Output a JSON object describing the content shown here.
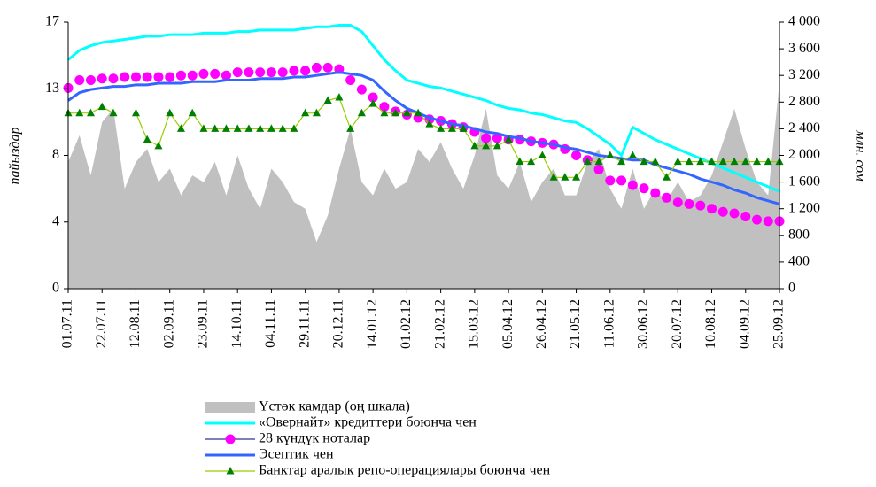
{
  "chart_data": {
    "type": "line",
    "categories": [
      "01.07.11",
      null,
      null,
      "22.07.11",
      null,
      null,
      "12.08.11",
      null,
      null,
      "02.09.11",
      null,
      null,
      "23.09.11",
      null,
      null,
      "14.10.11",
      null,
      null,
      "04.11.11",
      null,
      null,
      "29.11.11",
      null,
      null,
      "20.12.11",
      null,
      null,
      "14.01.12",
      null,
      null,
      "01.02.12",
      null,
      null,
      "21.02.12",
      null,
      null,
      "15.03.12",
      null,
      null,
      "05.04.12",
      null,
      null,
      "26.04.12",
      null,
      null,
      "21.05.12",
      null,
      null,
      "11.06.12",
      null,
      null,
      "30.06.12",
      null,
      null,
      "20.07.12",
      null,
      null,
      "10.08.12",
      null,
      null,
      "04.09.12",
      null,
      null,
      "25.09.12"
    ],
    "y_label": "пайыздар",
    "y2_label": "млн. сом",
    "ylim": [
      0,
      17
    ],
    "yticks": [
      0,
      {
        "value": 4.25,
        "label": "4"
      },
      {
        "value": 8.5,
        "label": "8"
      },
      {
        "value": 12.75,
        "label": "13"
      },
      17
    ],
    "y2lim": [
      0,
      4000
    ],
    "y2ticks": [
      0,
      400,
      800,
      {
        "value": 1200,
        "label": "1 200"
      },
      {
        "value": 1600,
        "label": "1 600"
      },
      {
        "value": 2000,
        "label": "2 000"
      },
      {
        "value": 2400,
        "label": "2 400"
      },
      {
        "value": 2800,
        "label": "2 800"
      },
      {
        "value": 3200,
        "label": "3 200"
      },
      {
        "value": 3600,
        "label": "3 600"
      },
      {
        "value": 4000,
        "label": "4 000"
      }
    ],
    "legend": "bottom",
    "series": [
      {
        "name": "Үстөк камдар (оң шкала)",
        "axis": "y2",
        "mark": "area",
        "color": "#c0c0c0",
        "values": [
          1900,
          2300,
          1700,
          2500,
          2700,
          1500,
          1900,
          2100,
          1600,
          1800,
          1400,
          1700,
          1600,
          1900,
          1400,
          2000,
          1500,
          1200,
          1800,
          1600,
          1300,
          1200,
          700,
          1100,
          1800,
          2400,
          1600,
          1400,
          1800,
          1500,
          1600,
          2100,
          1900,
          2200,
          1800,
          1500,
          2000,
          2700,
          1700,
          1500,
          1900,
          1300,
          1600,
          1800,
          1400,
          1400,
          1900,
          2100,
          1500,
          1200,
          1800,
          1200,
          1500,
          1300,
          1600,
          1300,
          1400,
          1700,
          2200,
          2700,
          2100,
          1600,
          1400,
          3100
        ]
      },
      {
        "name": "«Овернайт» кредиттери боюнча чен",
        "mark": "line",
        "color": "#00ffff",
        "values": [
          14.6,
          15.2,
          15.5,
          15.7,
          15.8,
          15.9,
          16.0,
          16.1,
          16.1,
          16.2,
          16.2,
          16.2,
          16.3,
          16.3,
          16.3,
          16.4,
          16.4,
          16.5,
          16.5,
          16.5,
          16.5,
          16.6,
          16.7,
          16.7,
          16.8,
          16.8,
          16.4,
          15.5,
          14.6,
          13.9,
          13.3,
          13.1,
          12.9,
          12.8,
          12.6,
          12.4,
          12.2,
          12.0,
          11.7,
          11.5,
          11.4,
          11.2,
          11.1,
          10.9,
          10.7,
          10.6,
          10.2,
          9.7,
          9.2,
          8.5,
          10.3,
          9.9,
          9.5,
          9.2,
          8.9,
          8.6,
          8.3,
          8.0,
          7.7,
          7.4,
          7.1,
          6.8,
          6.5,
          6.2
        ]
      },
      {
        "name": "28 күндүк ноталар",
        "mark": "circles",
        "color": "#ff00ff",
        "line_color": "#333399",
        "values": [
          12.8,
          13.3,
          13.3,
          13.4,
          13.4,
          13.5,
          13.5,
          13.5,
          13.5,
          13.5,
          13.6,
          13.6,
          13.7,
          13.7,
          13.6,
          13.8,
          13.8,
          13.8,
          13.8,
          13.8,
          13.9,
          13.9,
          14.1,
          14.1,
          14.0,
          13.3,
          12.7,
          12.2,
          11.6,
          11.3,
          11.1,
          10.9,
          10.8,
          10.7,
          10.5,
          10.3,
          10.0,
          9.6,
          9.6,
          9.5,
          9.5,
          9.4,
          9.3,
          9.2,
          8.9,
          8.5,
          8.2,
          7.6,
          6.9,
          6.9,
          6.6,
          6.4,
          6.1,
          5.8,
          5.5,
          5.4,
          5.3,
          5.1,
          4.9,
          4.8,
          4.6,
          4.4,
          4.3,
          4.3
        ]
      },
      {
        "name": "Эсептик чен",
        "mark": "line",
        "color": "#3366ff",
        "values": [
          12.0,
          12.5,
          12.7,
          12.8,
          12.9,
          12.9,
          13.0,
          13.0,
          13.1,
          13.1,
          13.1,
          13.2,
          13.2,
          13.2,
          13.3,
          13.3,
          13.3,
          13.4,
          13.4,
          13.4,
          13.5,
          13.5,
          13.6,
          13.7,
          13.8,
          13.7,
          13.6,
          13.3,
          12.6,
          12.0,
          11.5,
          11.2,
          10.9,
          10.7,
          10.5,
          10.4,
          10.2,
          10.0,
          9.9,
          9.7,
          9.6,
          9.4,
          9.3,
          9.2,
          9.0,
          8.9,
          8.7,
          8.5,
          8.4,
          8.3,
          8.2,
          8.2,
          7.9,
          7.7,
          7.5,
          7.3,
          7.0,
          6.8,
          6.6,
          6.3,
          6.1,
          5.8,
          5.6,
          5.4
        ]
      },
      {
        "name": "Банктар аралык репо-операциялары боюнча чен",
        "mark": "triangles",
        "color": "#008000",
        "line_color": "#99cc00",
        "values": [
          11.2,
          11.2,
          11.2,
          11.6,
          11.2,
          null,
          11.2,
          9.5,
          9.1,
          11.2,
          10.2,
          11.2,
          10.2,
          10.2,
          10.2,
          10.2,
          10.2,
          10.2,
          10.2,
          10.2,
          10.2,
          11.2,
          11.2,
          12.0,
          12.2,
          10.2,
          11.2,
          11.8,
          11.2,
          11.2,
          11.2,
          11.2,
          10.5,
          10.2,
          10.2,
          10.2,
          9.1,
          9.1,
          9.1,
          9.5,
          8.1,
          8.1,
          8.5,
          7.1,
          7.1,
          7.1,
          8.1,
          8.1,
          8.5,
          8.1,
          8.5,
          8.1,
          8.1,
          7.1,
          8.1,
          8.1,
          8.1,
          8.1,
          8.1,
          8.1,
          8.1,
          8.1,
          8.1,
          8.1
        ]
      }
    ]
  }
}
